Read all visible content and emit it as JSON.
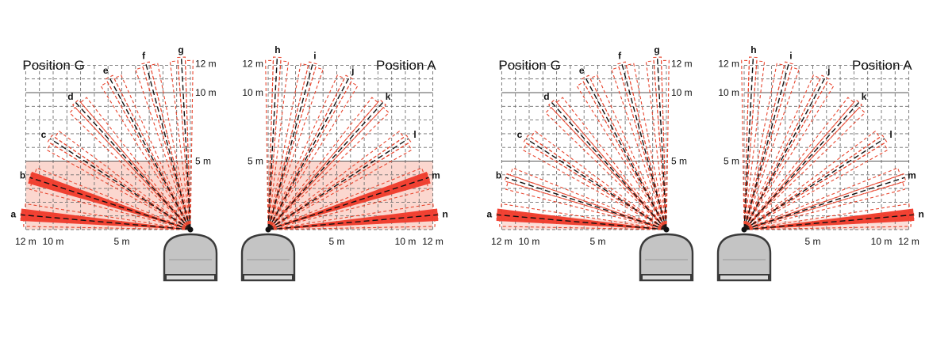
{
  "diagram_sets": [
    {
      "id": "set-1",
      "panels": [
        {
          "id": "left-1",
          "position_label": "Position G",
          "side": "left",
          "zones": [
            "a",
            "b",
            "c",
            "d",
            "e",
            "f",
            "g"
          ],
          "filled_zones": [
            "a",
            "b"
          ],
          "near_fill": true,
          "distance_labels": {
            "vertical": [
              "12 m",
              "10 m",
              "5 m"
            ],
            "horizontal": [
              "12 m",
              "10 m",
              "5 m"
            ]
          }
        },
        {
          "id": "right-1",
          "position_label": "Position A",
          "side": "right",
          "zones": [
            "h",
            "i",
            "j",
            "k",
            "l",
            "m",
            "n"
          ],
          "filled_zones": [
            "m",
            "n"
          ],
          "near_fill": true,
          "distance_labels": {
            "vertical": [
              "12 m",
              "10 m",
              "5 m"
            ],
            "horizontal": [
              "5 m",
              "10 m",
              "12 m"
            ]
          }
        }
      ]
    },
    {
      "id": "set-2",
      "panels": [
        {
          "id": "left-2",
          "position_label": "Position G",
          "side": "left",
          "zones": [
            "a",
            "b",
            "c",
            "d",
            "e",
            "f",
            "g"
          ],
          "filled_zones": [
            "a"
          ],
          "near_fill": false,
          "distance_labels": {
            "vertical": [
              "12 m",
              "10 m",
              "5 m"
            ],
            "horizontal": [
              "12 m",
              "10 m",
              "5 m"
            ]
          }
        },
        {
          "id": "right-2",
          "position_label": "Position A",
          "side": "right",
          "zones": [
            "h",
            "i",
            "j",
            "k",
            "l",
            "m",
            "n"
          ],
          "filled_zones": [
            "n"
          ],
          "near_fill": false,
          "distance_labels": {
            "vertical": [
              "12 m",
              "10 m",
              "5 m"
            ],
            "horizontal": [
              "5 m",
              "10 m",
              "12 m"
            ]
          }
        }
      ]
    }
  ],
  "colors": {
    "beam": "#f2382a",
    "beam_outline": "#e8462f",
    "near_zone": "#fbd7cf",
    "sensor": "#c4c4c4"
  }
}
